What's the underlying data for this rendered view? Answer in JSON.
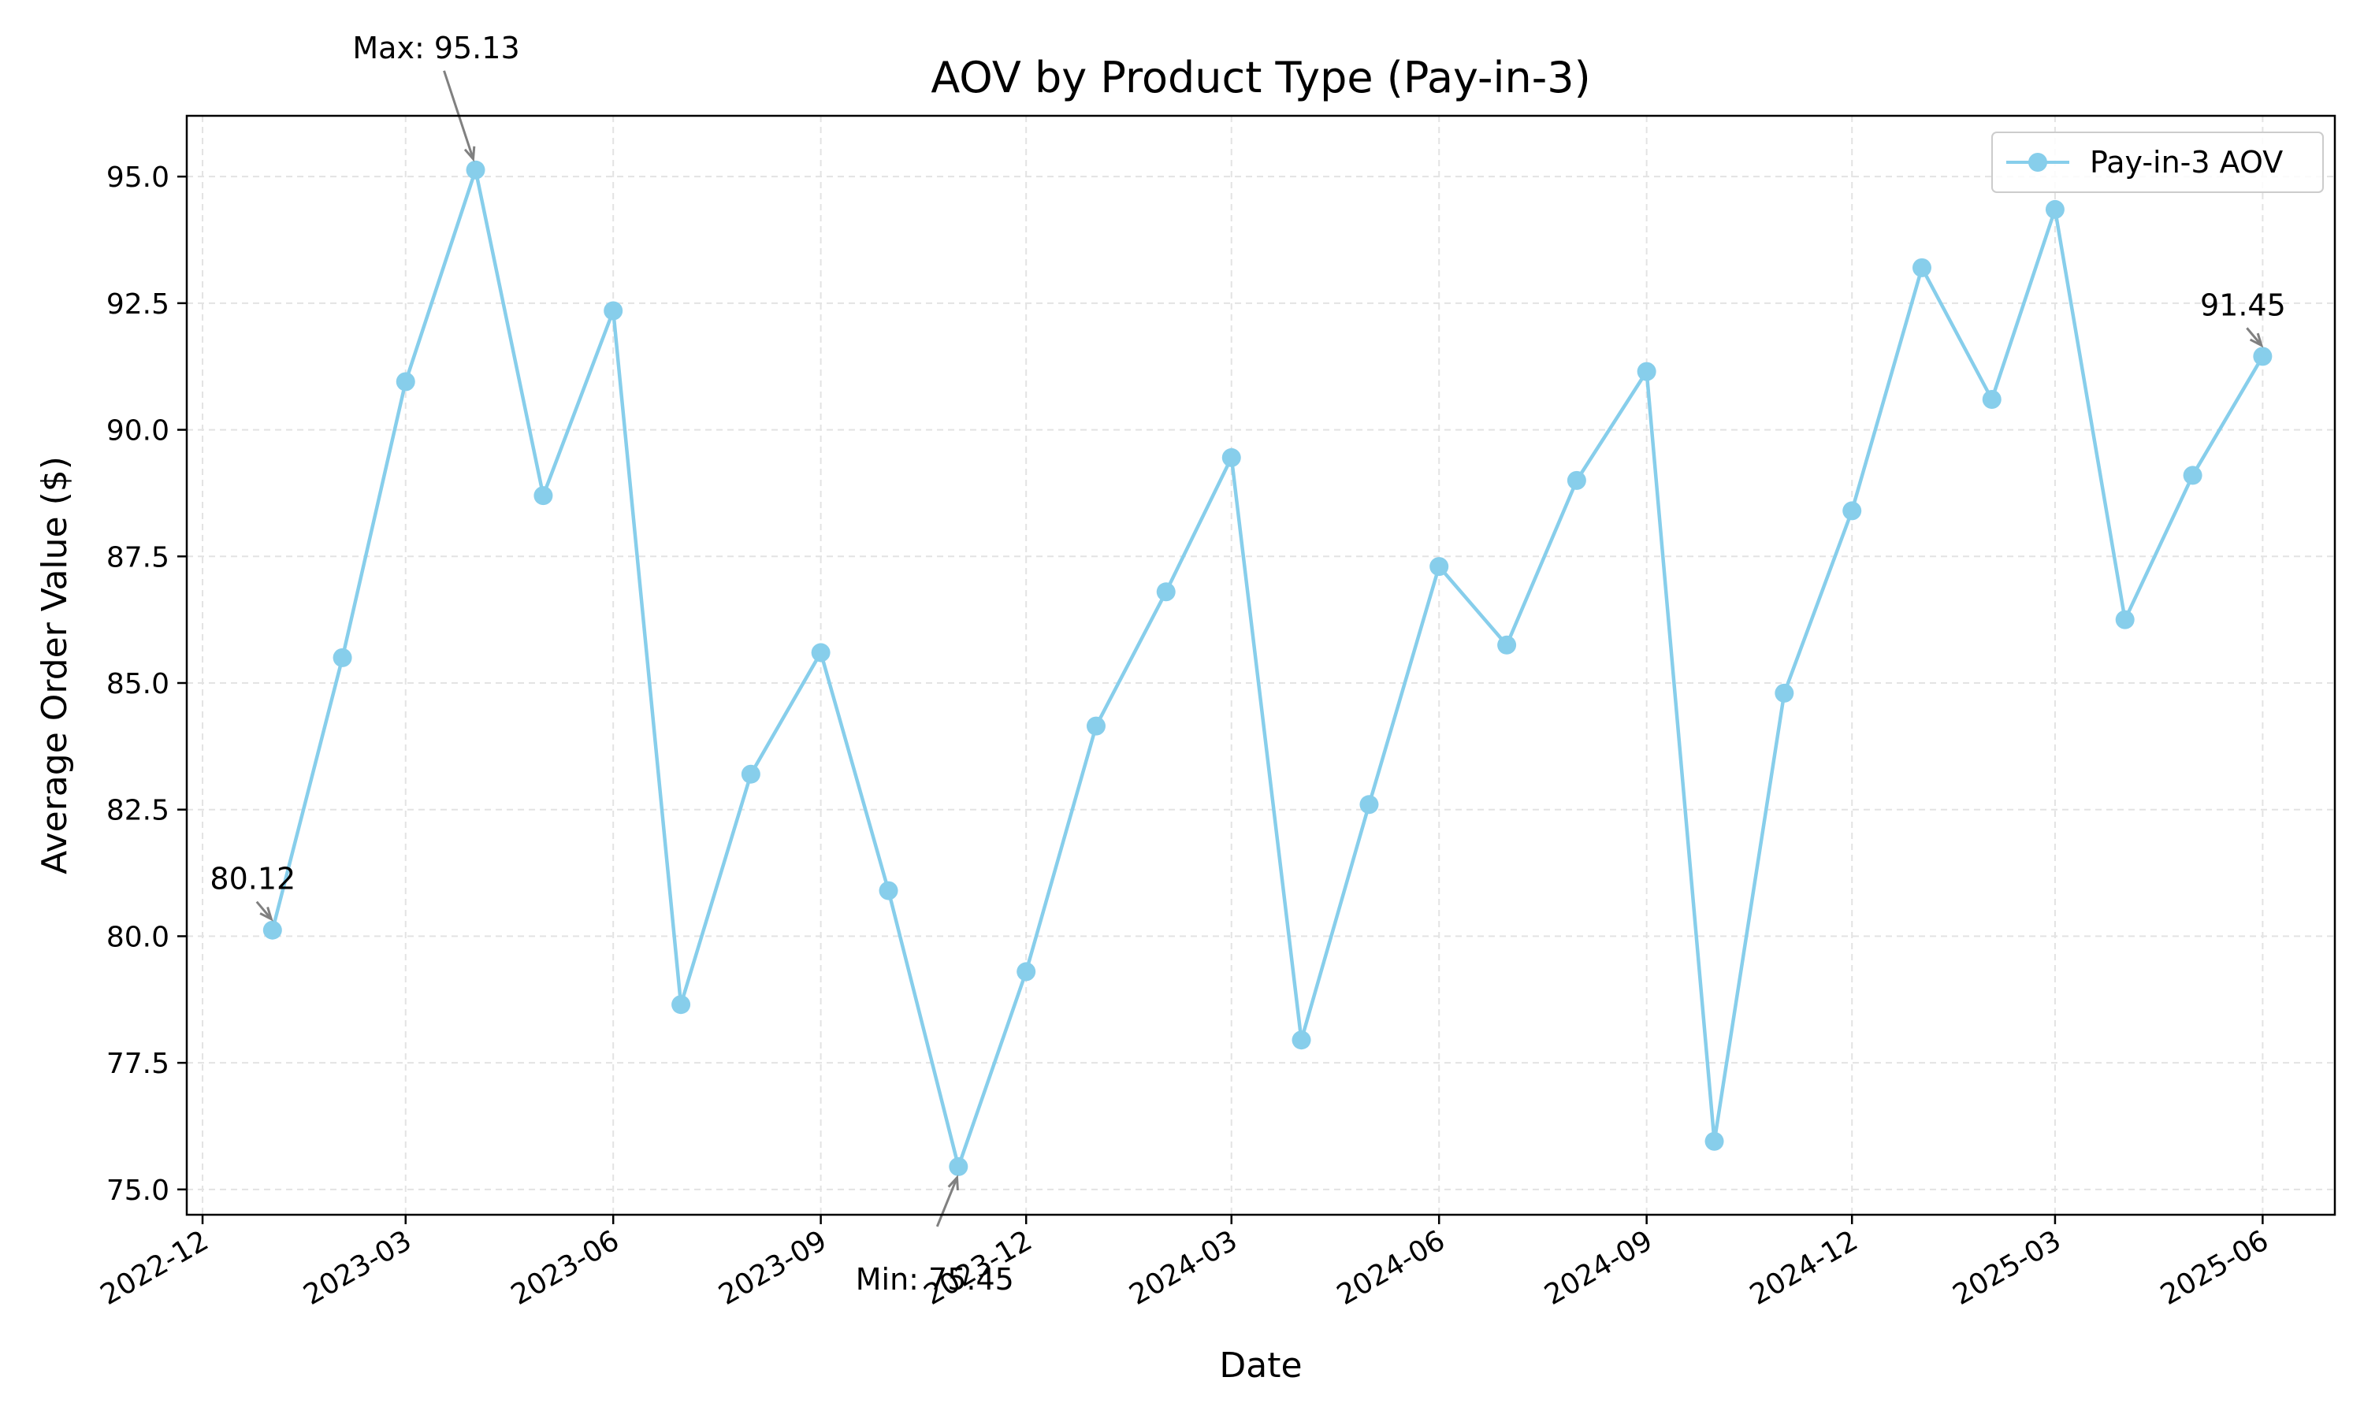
{
  "chart_data": {
    "type": "line",
    "title": "AOV by Product Type (Pay-in-3)",
    "xlabel": "Date",
    "ylabel": "Average Order Value ($)",
    "ylim": [
      74.5,
      96.2
    ],
    "xlim": [
      "2022-11-24",
      "2025-07-03"
    ],
    "x_ticks": [
      "2022-12",
      "2023-03",
      "2023-06",
      "2023-09",
      "2023-12",
      "2024-03",
      "2024-06",
      "2024-09",
      "2024-12",
      "2025-03",
      "2025-06"
    ],
    "y_ticks": [
      "75.0",
      "77.5",
      "80.0",
      "82.5",
      "85.0",
      "87.5",
      "90.0",
      "92.5",
      "95.0"
    ],
    "grid": true,
    "legend_position": "top-right",
    "series": [
      {
        "name": "Pay-in-3 AOV",
        "color": "#87ceeb",
        "marker": "circle",
        "x": [
          "2023-01",
          "2023-02",
          "2023-03",
          "2023-04",
          "2023-05",
          "2023-06",
          "2023-07",
          "2023-08",
          "2023-09",
          "2023-10",
          "2023-11",
          "2023-12",
          "2024-01",
          "2024-02",
          "2024-03",
          "2024-04",
          "2024-05",
          "2024-06",
          "2024-07",
          "2024-08",
          "2024-09",
          "2024-10",
          "2024-11",
          "2024-12",
          "2025-01",
          "2025-02",
          "2025-03",
          "2025-04",
          "2025-05",
          "2025-06"
        ],
        "y": [
          80.12,
          85.5,
          90.95,
          95.13,
          88.7,
          92.35,
          78.65,
          83.2,
          85.6,
          80.9,
          75.45,
          79.3,
          84.15,
          86.8,
          89.45,
          77.95,
          82.6,
          87.3,
          85.75,
          89.0,
          91.15,
          75.95,
          84.8,
          88.4,
          93.2,
          90.6,
          94.35,
          86.25,
          89.1,
          91.45
        ]
      }
    ],
    "annotations": [
      {
        "text": "Max: 95.13",
        "x": "2023-04",
        "y": 95.13
      },
      {
        "text": "Min: 75.45",
        "x": "2023-11",
        "y": 75.45
      },
      {
        "text": "80.12",
        "x": "2023-01",
        "y": 80.12
      },
      {
        "text": "91.45",
        "x": "2025-06",
        "y": 91.45
      }
    ]
  }
}
